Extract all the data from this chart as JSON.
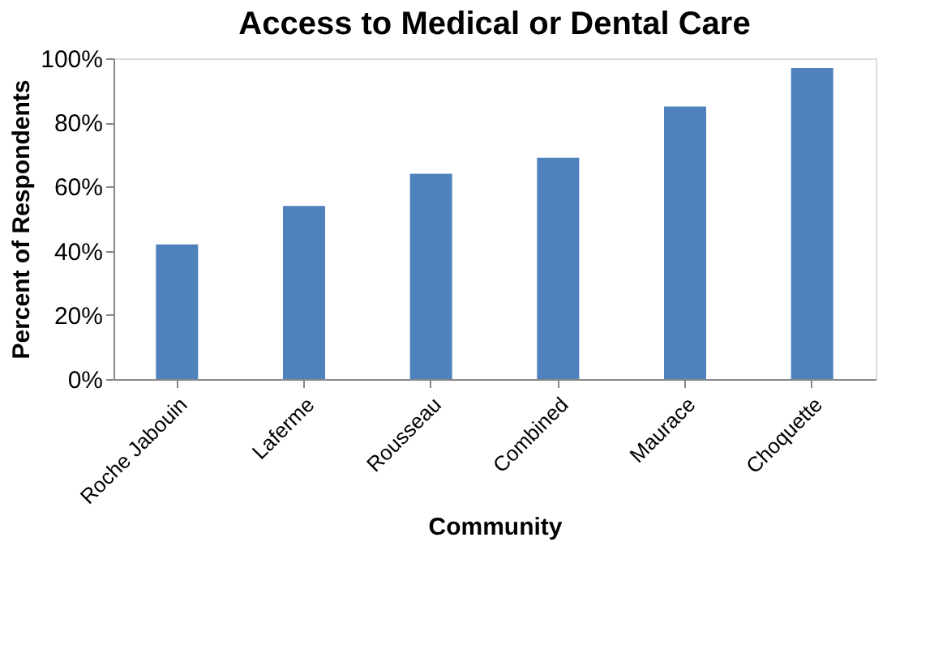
{
  "chart_data": {
    "type": "bar",
    "title": "Access to Medical or Dental Care",
    "xlabel": "Community",
    "ylabel": "Percent of Respondents",
    "categories": [
      "Roche Jabouin",
      "Laferme",
      "Rousseau",
      "Combined",
      "Maurace",
      "Choquette"
    ],
    "values": [
      42,
      54,
      64,
      69,
      85,
      97
    ],
    "color": "#4f81bd",
    "ylim": [
      0,
      100
    ],
    "yticks": [
      {
        "value": 0,
        "label": "0%"
      },
      {
        "value": 20,
        "label": "20%"
      },
      {
        "value": 40,
        "label": "40%"
      },
      {
        "value": 60,
        "label": "60%"
      },
      {
        "value": 80,
        "label": "80%"
      },
      {
        "value": 100,
        "label": "100%"
      }
    ],
    "grid": false
  }
}
